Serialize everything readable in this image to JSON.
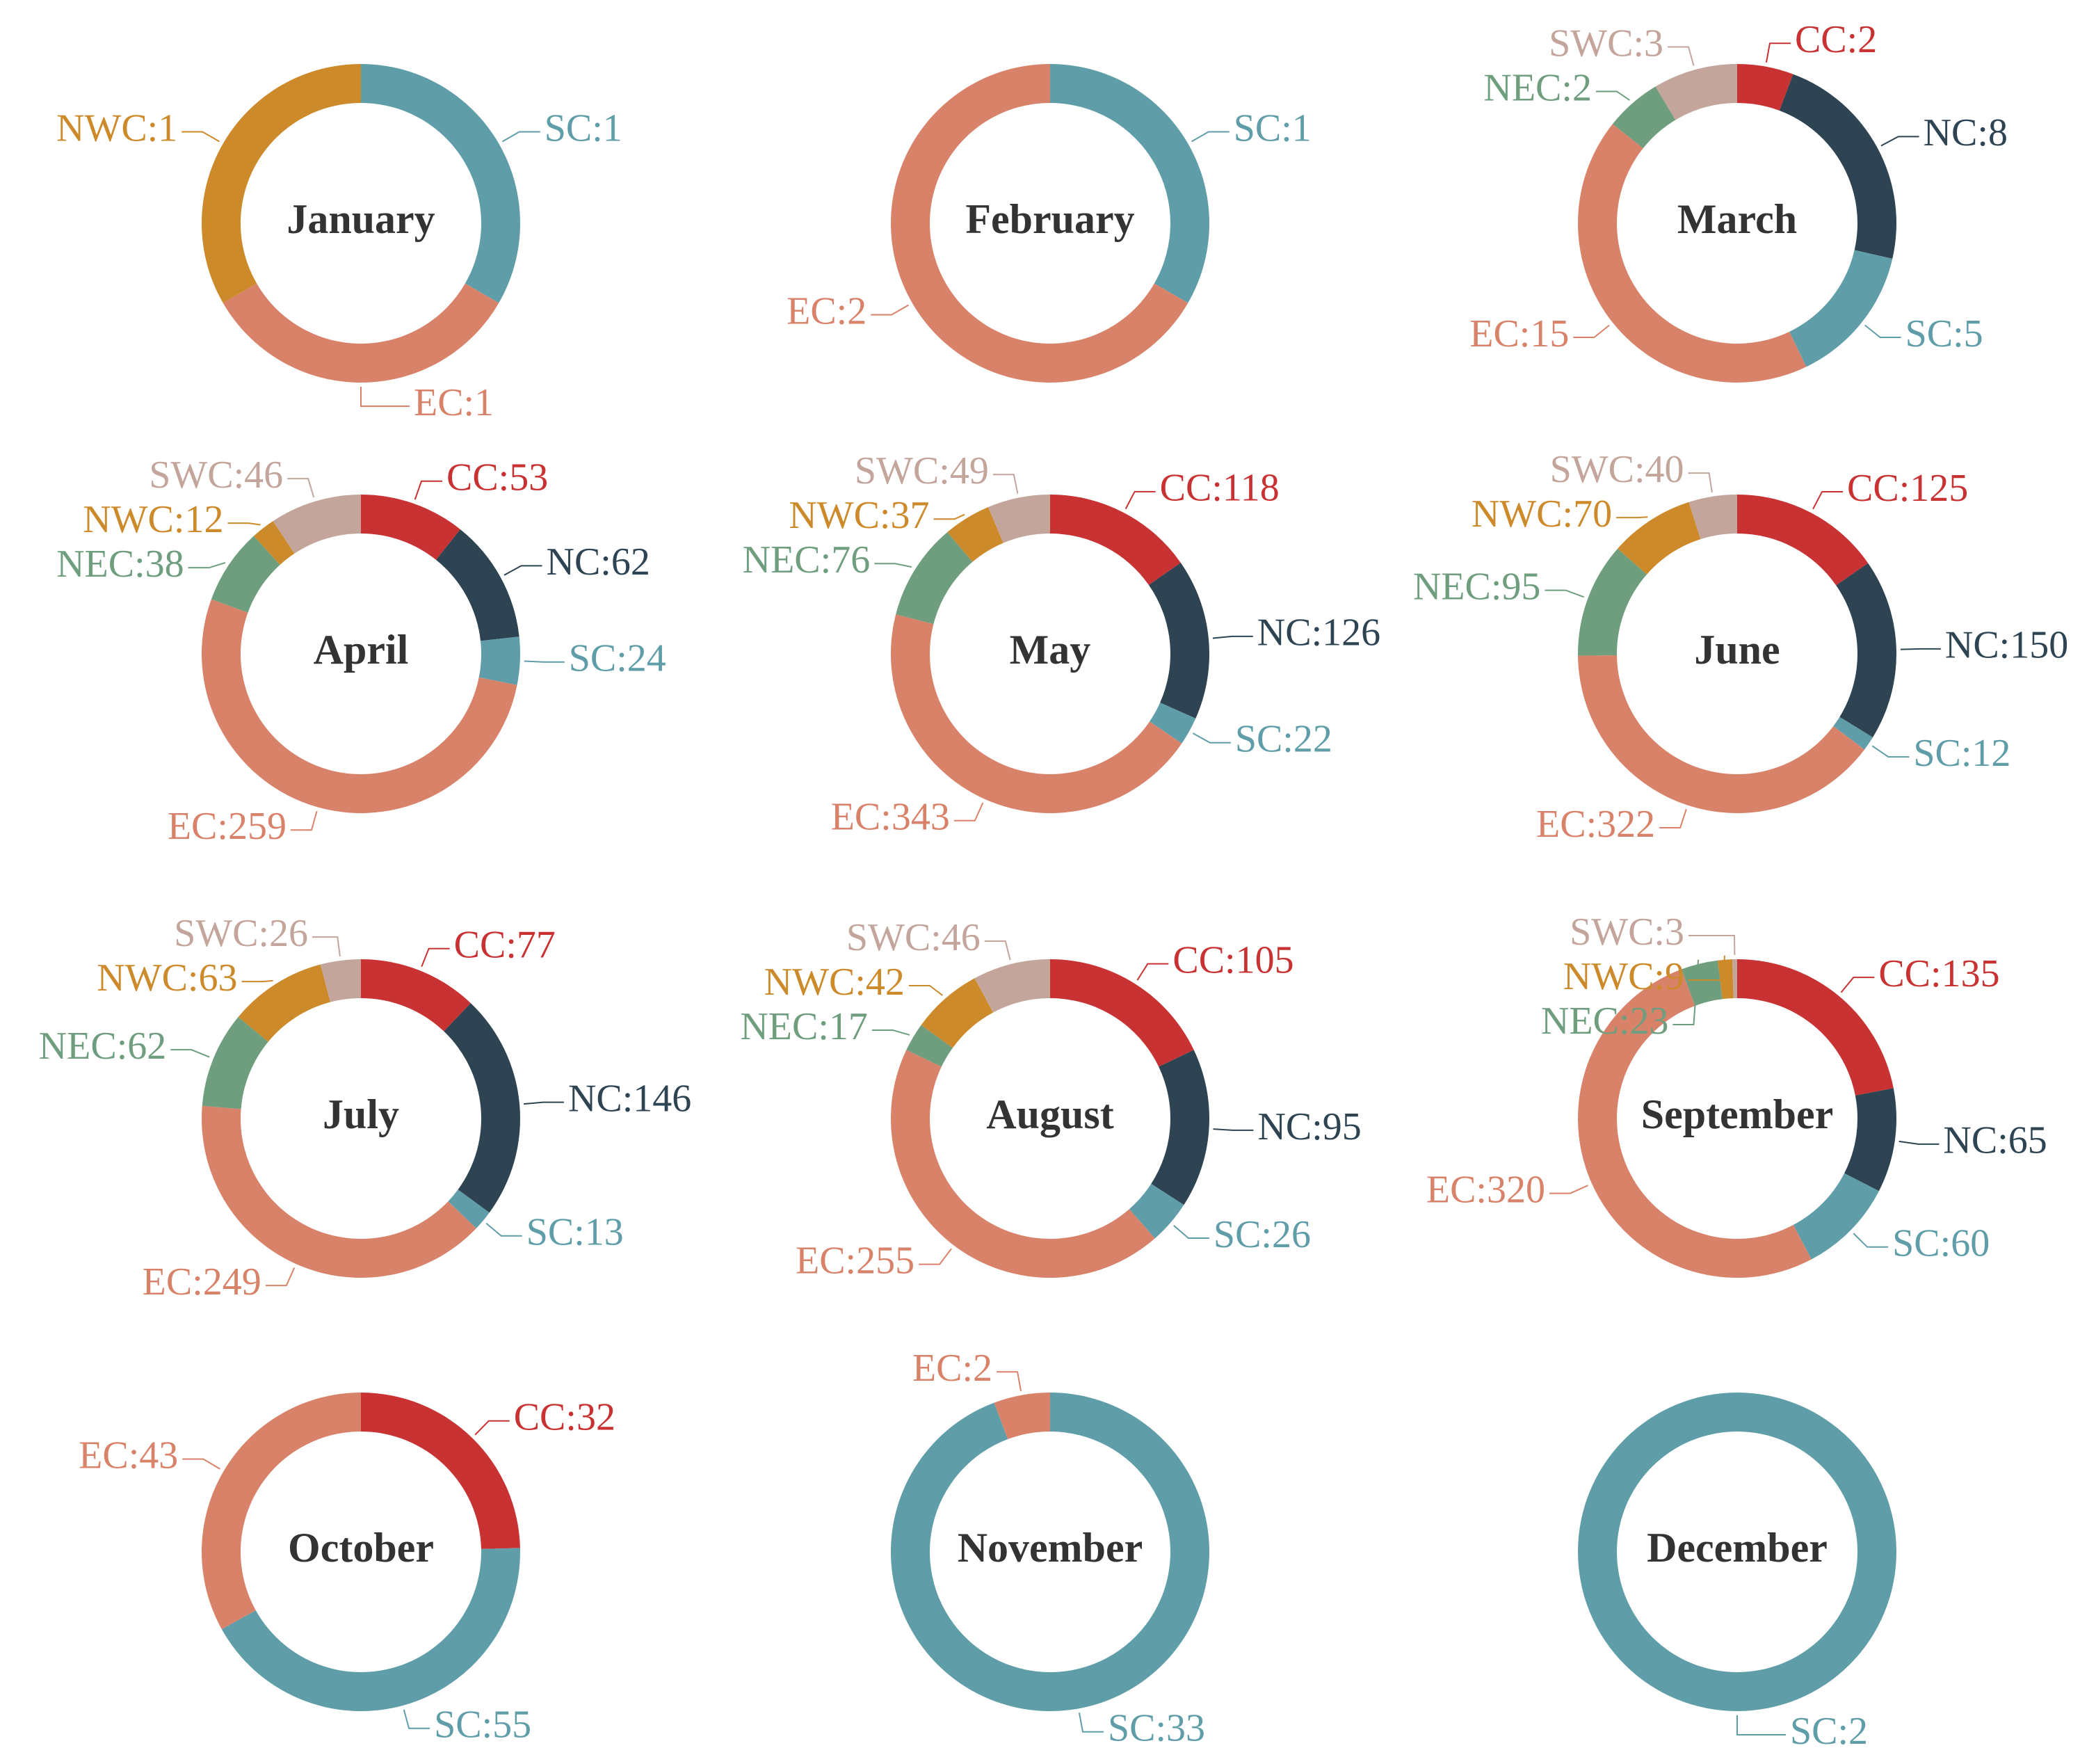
{
  "chart_data": [
    {
      "type": "pie",
      "title": "January",
      "values": [
        1,
        1,
        1
      ],
      "value_labels": [
        "SC:1",
        "EC:1",
        "NWC:1"
      ],
      "colors": [
        "#5f9ea8",
        "#d9826a",
        "#cc8a2a"
      ]
    },
    {
      "type": "pie",
      "title": "February",
      "values": [
        1,
        2
      ],
      "value_labels": [
        "SC:1",
        "EC:2"
      ],
      "colors": [
        "#5f9ea8",
        "#d9826a"
      ]
    },
    {
      "type": "pie",
      "title": "March",
      "values": [
        2,
        8,
        5,
        15,
        2,
        3
      ],
      "value_labels": [
        "CC:2",
        "NC:8",
        "SC:5",
        "EC:15",
        "NEC:2",
        "SWC:3"
      ],
      "colors": [
        "#c83232",
        "#2e4453",
        "#5f9ea8",
        "#d9826a",
        "#6f9e7e",
        "#c4a59c"
      ]
    },
    {
      "type": "pie",
      "title": "April",
      "values": [
        53,
        62,
        24,
        259,
        38,
        12,
        46
      ],
      "value_labels": [
        "CC:53",
        "NC:62",
        "SC:24",
        "EC:259",
        "NEC:38",
        "NWC:12",
        "SWC:46"
      ],
      "colors": [
        "#c83232",
        "#2e4453",
        "#5f9ea8",
        "#d9826a",
        "#6f9e7e",
        "#cc8a2a",
        "#c4a59c"
      ]
    },
    {
      "type": "pie",
      "title": "May",
      "values": [
        118,
        126,
        22,
        343,
        76,
        37,
        49
      ],
      "value_labels": [
        "CC:118",
        "NC:126",
        "SC:22",
        "EC:343",
        "NEC:76",
        "NWC:37",
        "SWC:49"
      ],
      "colors": [
        "#c83232",
        "#2e4453",
        "#5f9ea8",
        "#d9826a",
        "#6f9e7e",
        "#cc8a2a",
        "#c4a59c"
      ]
    },
    {
      "type": "pie",
      "title": "June",
      "values": [
        125,
        150,
        12,
        322,
        95,
        70,
        40
      ],
      "value_labels": [
        "CC:125",
        "NC:150",
        "SC:12",
        "EC:322",
        "NEC:95",
        "NWC:70",
        "SWC:40"
      ],
      "colors": [
        "#c83232",
        "#2e4453",
        "#5f9ea8",
        "#d9826a",
        "#6f9e7e",
        "#cc8a2a",
        "#c4a59c"
      ]
    },
    {
      "type": "pie",
      "title": "July",
      "values": [
        77,
        146,
        13,
        249,
        62,
        63,
        26
      ],
      "value_labels": [
        "CC:77",
        "NC:146",
        "SC:13",
        "EC:249",
        "NEC:62",
        "NWC:63",
        "SWC:26"
      ],
      "colors": [
        "#c83232",
        "#2e4453",
        "#5f9ea8",
        "#d9826a",
        "#6f9e7e",
        "#cc8a2a",
        "#c4a59c"
      ]
    },
    {
      "type": "pie",
      "title": "August",
      "values": [
        105,
        95,
        26,
        255,
        17,
        42,
        46
      ],
      "value_labels": [
        "CC:105",
        "NC:95",
        "SC:26",
        "EC:255",
        "NEC:17",
        "NWC:42",
        "SWC:46"
      ],
      "colors": [
        "#c83232",
        "#2e4453",
        "#5f9ea8",
        "#d9826a",
        "#6f9e7e",
        "#cc8a2a",
        "#c4a59c"
      ]
    },
    {
      "type": "pie",
      "title": "September",
      "values": [
        135,
        65,
        60,
        320,
        23,
        9,
        3
      ],
      "value_labels": [
        "CC:135",
        "NC:65",
        "SC:60",
        "EC:320",
        "NEC:23",
        "NWC:9",
        "SWC:3"
      ],
      "colors": [
        "#c83232",
        "#2e4453",
        "#5f9ea8",
        "#d9826a",
        "#6f9e7e",
        "#cc8a2a",
        "#c4a59c"
      ]
    },
    {
      "type": "pie",
      "title": "October",
      "values": [
        32,
        55,
        43
      ],
      "value_labels": [
        "CC:32",
        "SC:55",
        "EC:43"
      ],
      "colors": [
        "#c83232",
        "#5f9ea8",
        "#d9826a"
      ]
    },
    {
      "type": "pie",
      "title": "November",
      "values": [
        33,
        2
      ],
      "value_labels": [
        "SC:33",
        "EC:2"
      ],
      "colors": [
        "#5f9ea8",
        "#d9826a"
      ]
    },
    {
      "type": "pie",
      "title": "December",
      "values": [
        2
      ],
      "value_labels": [
        "SC:2"
      ],
      "colors": [
        "#5f9ea8"
      ]
    }
  ]
}
